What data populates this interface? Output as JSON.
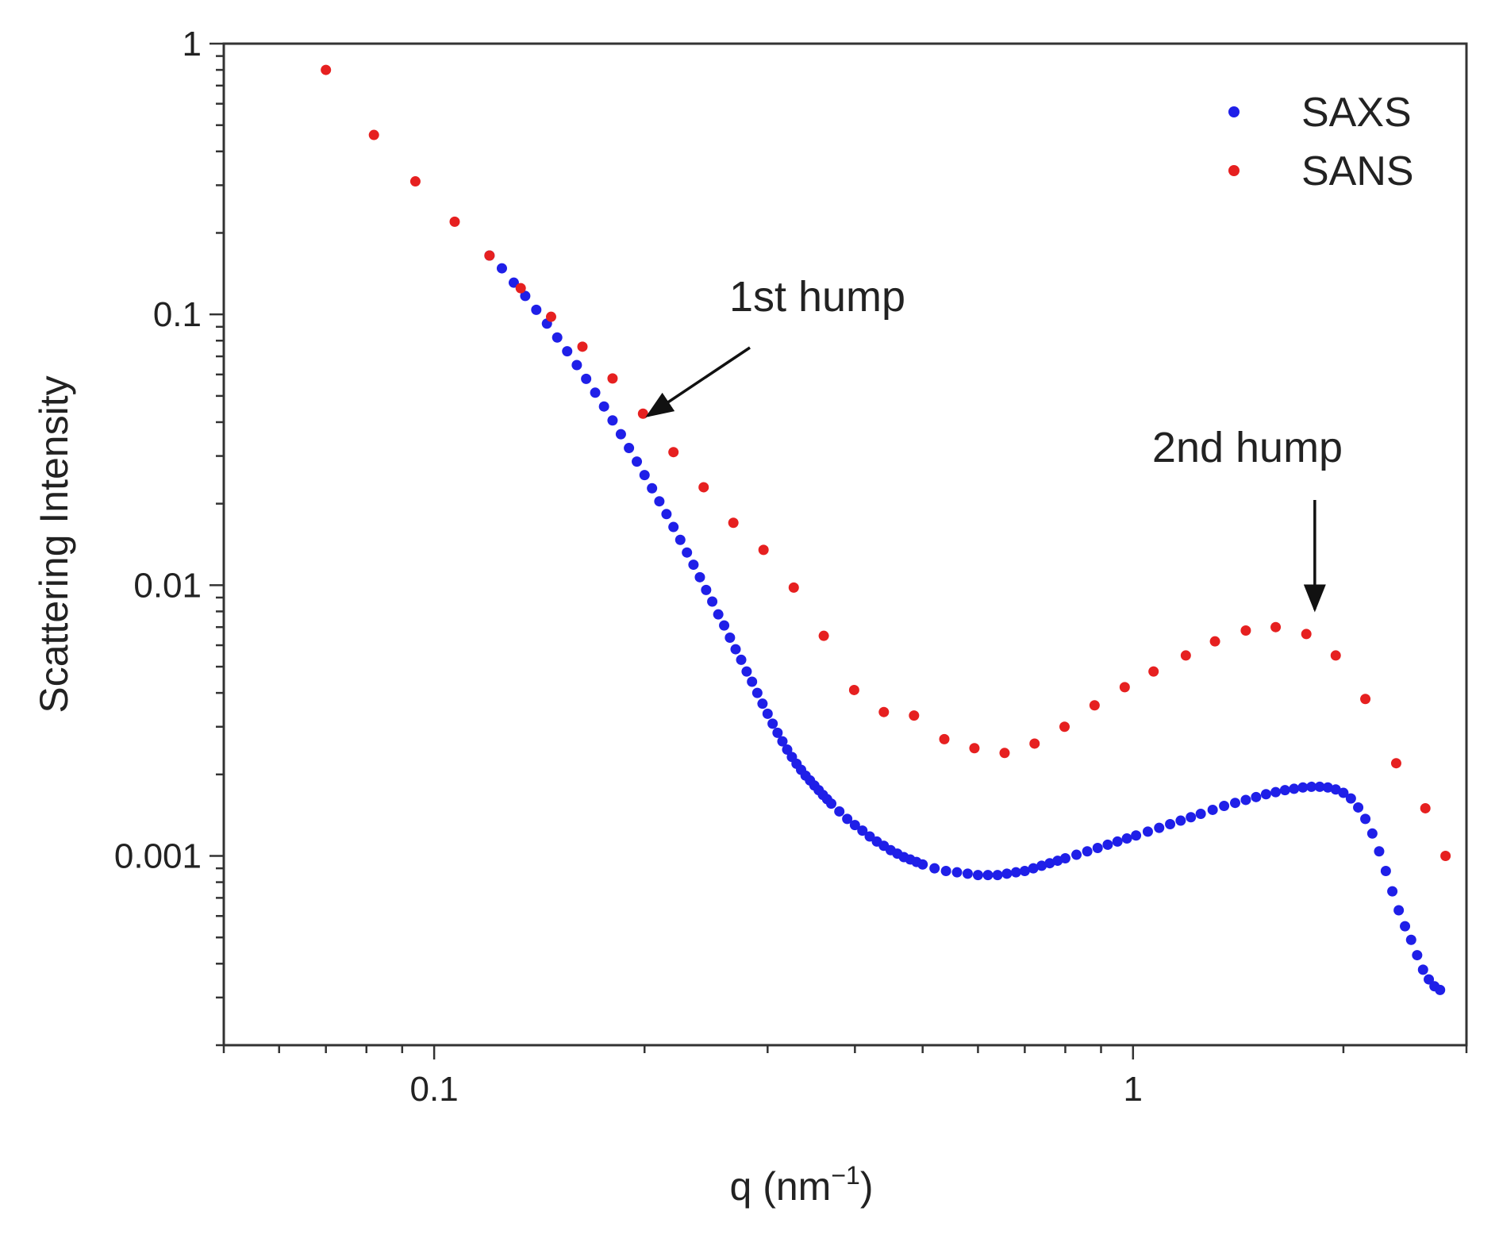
{
  "chart_data": {
    "type": "scatter",
    "title": "",
    "xlabel": "q (nm",
    "xlabel_superscript": "−1",
    "xlabel_close": ")",
    "ylabel": "Scattering Intensity",
    "xscale": "log",
    "yscale": "log",
    "xlim": [
      0.05,
      3.0
    ],
    "ylim": [
      0.0002,
      1.0
    ],
    "x_ticks": [
      {
        "value": 0.1,
        "label": "0.1"
      },
      {
        "value": 1,
        "label": "1"
      }
    ],
    "y_ticks": [
      {
        "value": 1,
        "label": "1"
      },
      {
        "value": 0.1,
        "label": "0.1"
      },
      {
        "value": 0.01,
        "label": "0.01"
      },
      {
        "value": 0.001,
        "label": "0.001"
      }
    ],
    "legend": {
      "position": "top-right"
    },
    "series": [
      {
        "name": "SAXS",
        "color": "#1f1fe8",
        "x": [
          0.12,
          0.125,
          0.13,
          0.135,
          0.14,
          0.145,
          0.15,
          0.155,
          0.16,
          0.165,
          0.17,
          0.175,
          0.18,
          0.185,
          0.19,
          0.195,
          0.2,
          0.205,
          0.21,
          0.215,
          0.22,
          0.225,
          0.23,
          0.235,
          0.24,
          0.245,
          0.25,
          0.255,
          0.26,
          0.265,
          0.27,
          0.275,
          0.28,
          0.285,
          0.29,
          0.295,
          0.3,
          0.305,
          0.31,
          0.315,
          0.32,
          0.325,
          0.33,
          0.335,
          0.34,
          0.345,
          0.35,
          0.355,
          0.36,
          0.365,
          0.37,
          0.38,
          0.39,
          0.4,
          0.41,
          0.42,
          0.43,
          0.44,
          0.45,
          0.46,
          0.47,
          0.48,
          0.49,
          0.5,
          0.52,
          0.54,
          0.56,
          0.58,
          0.6,
          0.62,
          0.64,
          0.66,
          0.68,
          0.7,
          0.72,
          0.74,
          0.76,
          0.78,
          0.8,
          0.83,
          0.86,
          0.89,
          0.92,
          0.95,
          0.98,
          1.01,
          1.05,
          1.09,
          1.13,
          1.17,
          1.21,
          1.25,
          1.3,
          1.35,
          1.4,
          1.45,
          1.5,
          1.55,
          1.6,
          1.65,
          1.7,
          1.75,
          1.8,
          1.85,
          1.9,
          1.95,
          2.0,
          2.05,
          2.1,
          2.15,
          2.2,
          2.25,
          2.3,
          2.35,
          2.4,
          2.45,
          2.5,
          2.55,
          2.6,
          2.65,
          2.7,
          2.75
        ],
        "values": [
          0.165,
          0.148,
          0.131,
          0.117,
          0.104,
          0.0925,
          0.0822,
          0.0731,
          0.065,
          0.0578,
          0.0514,
          0.0457,
          0.0406,
          0.0361,
          0.0321,
          0.0286,
          0.0255,
          0.0228,
          0.0204,
          0.0183,
          0.0164,
          0.0147,
          0.0132,
          0.0119,
          0.0107,
          0.0096,
          0.0087,
          0.0078,
          0.0071,
          0.0064,
          0.0058,
          0.0053,
          0.0048,
          0.0044,
          0.004,
          0.00365,
          0.00335,
          0.00308,
          0.00285,
          0.00265,
          0.00247,
          0.00232,
          0.00219,
          0.00208,
          0.00198,
          0.0019,
          0.00182,
          0.00175,
          0.00168,
          0.00162,
          0.00156,
          0.00146,
          0.00137,
          0.0013,
          0.00124,
          0.00118,
          0.00113,
          0.00109,
          0.00105,
          0.00102,
          0.00099,
          0.00097,
          0.00095,
          0.00093,
          0.0009,
          0.00088,
          0.00087,
          0.00086,
          0.00085,
          0.00085,
          0.00085,
          0.00086,
          0.00087,
          0.00088,
          0.0009,
          0.00092,
          0.00094,
          0.00096,
          0.00098,
          0.00101,
          0.00104,
          0.00107,
          0.0011,
          0.00113,
          0.00116,
          0.00119,
          0.00123,
          0.00127,
          0.00131,
          0.00135,
          0.00139,
          0.00143,
          0.00148,
          0.00153,
          0.00157,
          0.00161,
          0.00165,
          0.00169,
          0.00172,
          0.00175,
          0.00177,
          0.00179,
          0.0018,
          0.0018,
          0.00179,
          0.00176,
          0.00171,
          0.00163,
          0.00151,
          0.00137,
          0.00121,
          0.00104,
          0.00088,
          0.00074,
          0.00063,
          0.00055,
          0.00049,
          0.00043,
          0.00038,
          0.00035,
          0.00033,
          0.00032
        ]
      },
      {
        "name": "SANS",
        "color": "#e62020",
        "x": [
          0.07,
          0.082,
          0.094,
          0.107,
          0.12,
          0.133,
          0.147,
          0.163,
          0.18,
          0.199,
          0.22,
          0.243,
          0.268,
          0.296,
          0.327,
          0.361,
          0.399,
          0.44,
          0.486,
          0.537,
          0.593,
          0.655,
          0.723,
          0.798,
          0.881,
          0.973,
          1.07,
          1.19,
          1.31,
          1.45,
          1.6,
          1.77,
          1.95,
          2.15,
          2.38,
          2.62,
          2.8
        ],
        "values": [
          0.8,
          0.46,
          0.31,
          0.22,
          0.165,
          0.125,
          0.098,
          0.076,
          0.058,
          0.043,
          0.031,
          0.023,
          0.017,
          0.0135,
          0.0098,
          0.0065,
          0.0041,
          0.0034,
          0.0033,
          0.0027,
          0.0025,
          0.0024,
          0.0026,
          0.003,
          0.0036,
          0.0042,
          0.0048,
          0.0055,
          0.0062,
          0.0068,
          0.007,
          0.0066,
          0.0055,
          0.0038,
          0.0022,
          0.0015,
          0.001
        ]
      }
    ],
    "annotations": [
      {
        "text": "1st hump",
        "x": 0.2,
        "y": 0.04
      },
      {
        "text": "2nd hump",
        "x": 1.82,
        "y": 0.0075
      }
    ]
  }
}
